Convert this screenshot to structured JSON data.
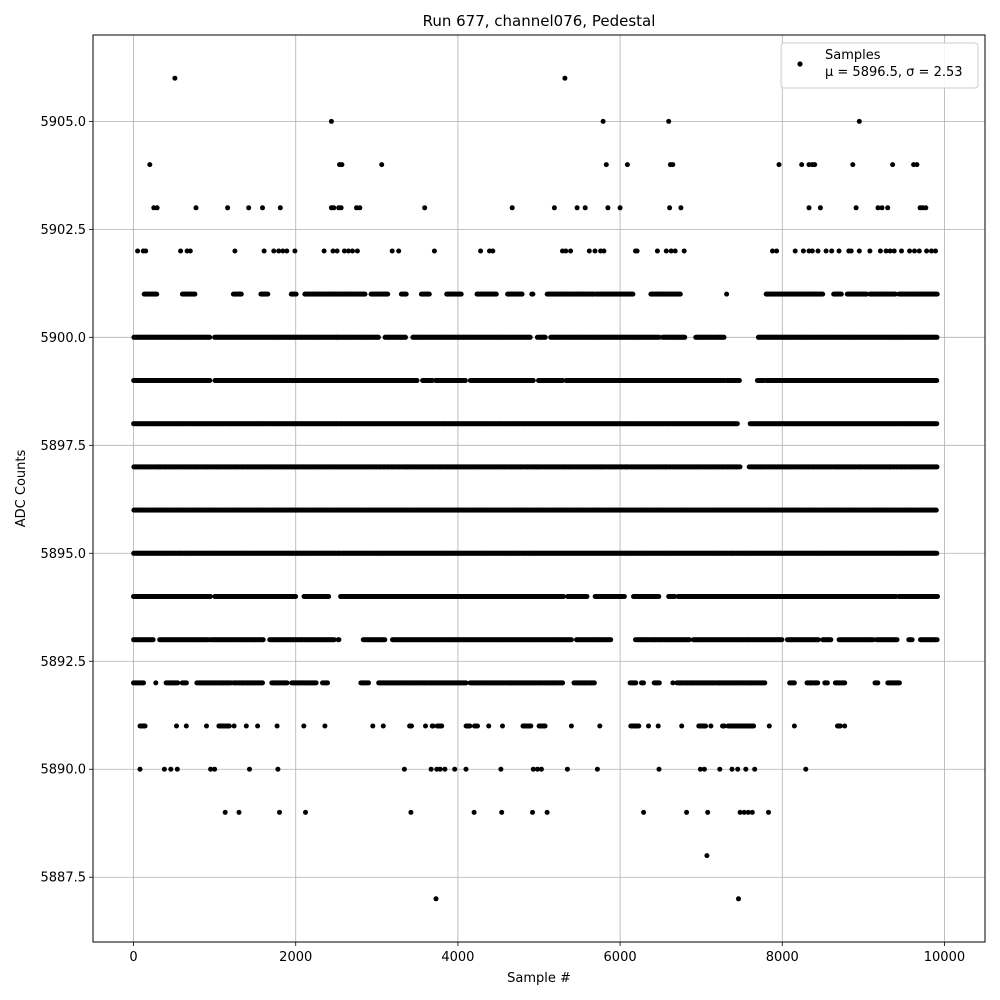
{
  "chart_data": {
    "type": "scatter",
    "title": "Run 677, channel076, Pedestal",
    "xlabel": "Sample #",
    "ylabel": "ADC Counts",
    "xlim": [
      -500,
      10500
    ],
    "ylim": [
      5886,
      5907
    ],
    "x_ticks": [
      0,
      2000,
      4000,
      6000,
      8000,
      10000
    ],
    "x_tick_labels": [
      "0",
      "2000",
      "4000",
      "6000",
      "8000",
      "10000"
    ],
    "y_ticks": [
      5887.5,
      5890.0,
      5892.5,
      5895.0,
      5897.5,
      5900.0,
      5902.5,
      5905.0
    ],
    "y_tick_labels": [
      "5887.5",
      "5890.0",
      "5892.5",
      "5895.0",
      "5897.5",
      "5900.0",
      "5902.5",
      "5905.0"
    ],
    "grid": true,
    "legend_position": "top-right",
    "marker_color": "#000000",
    "series": [
      {
        "name": "Samples",
        "legend_line2": "μ = 5896.5, σ = 2.53",
        "x": [
          510,
          5320,
          2440,
          5790,
          6600,
          8950,
          200,
          2540,
          2570,
          3060,
          5830,
          6090,
          6620,
          6650,
          7960,
          8240,
          8330,
          8370,
          8400,
          8870,
          9360,
          9620,
          9660,
          250,
          290,
          770,
          1160,
          1420,
          1590,
          1810,
          2440,
          2470,
          2530,
          2560,
          2750,
          2790,
          3590,
          4670,
          5190,
          5470,
          5570,
          5850,
          6000,
          6610,
          6750,
          8330,
          8470,
          8910,
          9180,
          9230,
          9300,
          9700,
          9730,
          9770,
          50,
          120,
          150,
          580,
          660,
          700,
          1250,
          1610,
          1730,
          1790,
          1840,
          1890,
          1990,
          2350,
          2460,
          2510,
          2600,
          2650,
          2700,
          2760,
          3190,
          3270,
          3710,
          4280,
          4390,
          4430,
          5290,
          5330,
          5390,
          5620,
          5690,
          5760,
          5800,
          6190,
          6210,
          6460,
          6570,
          6630,
          6680,
          6790,
          7880,
          7930,
          8160,
          8260,
          8330,
          8370,
          8440,
          8540,
          8610,
          8700,
          8820,
          8850,
          8950,
          9080,
          9210,
          9280,
          9330,
          9380,
          9470,
          9570,
          9630,
          9690,
          9780,
          9840,
          9890
        ],
        "y": [
          5906,
          5906,
          5905,
          5905,
          5905,
          5905,
          5904,
          5904,
          5904,
          5904,
          5904,
          5904,
          5904,
          5904,
          5904,
          5904,
          5904,
          5904,
          5904,
          5904,
          5904,
          5904,
          5904,
          5903,
          5903,
          5903,
          5903,
          5903,
          5903,
          5903,
          5903,
          5903,
          5903,
          5903,
          5903,
          5903,
          5903,
          5903,
          5903,
          5903,
          5903,
          5903,
          5903,
          5903,
          5903,
          5903,
          5903,
          5903,
          5903,
          5903,
          5903,
          5903,
          5903,
          5903,
          5902,
          5902,
          5902,
          5902,
          5902,
          5902,
          5902,
          5902,
          5902,
          5902,
          5902,
          5902,
          5902,
          5902,
          5902,
          5902,
          5902,
          5902,
          5902,
          5902,
          5902,
          5902,
          5902,
          5902,
          5902,
          5902,
          5902,
          5902,
          5902,
          5902,
          5902,
          5902,
          5902,
          5902,
          5902,
          5902,
          5902,
          5902,
          5902,
          5902,
          5902,
          5902,
          5902,
          5902,
          5902,
          5902,
          5902,
          5902,
          5902,
          5902,
          5902,
          5902,
          5902,
          5902,
          5902,
          5902,
          5902,
          5902,
          5902,
          5902,
          5902,
          5902,
          5902,
          5902,
          5902
        ]
      }
    ],
    "low_outliers": {
      "x": [
        1130,
        1300,
        1800,
        2120,
        3420,
        4200,
        4540,
        4920,
        5100,
        6290,
        6820,
        7080,
        7480,
        7530,
        7580,
        7630,
        7830,
        3730,
        7460,
        7070,
        80,
        380,
        460,
        540,
        950,
        1000,
        1430,
        1780,
        3340,
        3670,
        3740,
        3780,
        3840,
        3960,
        4100,
        4530,
        4930,
        4980,
        5030,
        5350,
        5720,
        6480,
        6990,
        7040,
        7230,
        7380,
        7450,
        7550,
        7660,
        8290
      ],
      "y": [
        5889,
        5889,
        5889,
        5889,
        5889,
        5889,
        5889,
        5889,
        5889,
        5889,
        5889,
        5889,
        5889,
        5889,
        5889,
        5889,
        5889,
        5887,
        5887,
        5888,
        5890,
        5890,
        5890,
        5890,
        5890,
        5890,
        5890,
        5890,
        5890,
        5890,
        5890,
        5890,
        5890,
        5890,
        5890,
        5890,
        5890,
        5890,
        5890,
        5890,
        5890,
        5890,
        5890,
        5890,
        5890,
        5890,
        5890,
        5890,
        5890,
        5890
      ]
    },
    "dense_rows": [
      {
        "y": 5901,
        "segments": [
          [
            130,
            290
          ],
          [
            600,
            760
          ],
          [
            1230,
            1330
          ],
          [
            1570,
            1660
          ],
          [
            1940,
            2000
          ],
          [
            2110,
            2860
          ],
          [
            2930,
            3140
          ],
          [
            3300,
            3370
          ],
          [
            3550,
            3650
          ],
          [
            3860,
            4050
          ],
          [
            4230,
            4470
          ],
          [
            4610,
            4800
          ],
          [
            4910,
            4930
          ],
          [
            5100,
            5680
          ],
          [
            5700,
            6160
          ],
          [
            6380,
            6750
          ],
          [
            7310,
            7320
          ],
          [
            7800,
            8220
          ],
          [
            8230,
            8500
          ],
          [
            8630,
            8730
          ],
          [
            8800,
            9050
          ],
          [
            9080,
            9400
          ],
          [
            9440,
            9910
          ]
        ]
      },
      {
        "y": 5900,
        "segments": [
          [
            0,
            940
          ],
          [
            1000,
            2500
          ],
          [
            2500,
            3020
          ],
          [
            3100,
            3360
          ],
          [
            3440,
            4900
          ],
          [
            4980,
            5080
          ],
          [
            5140,
            5280
          ],
          [
            5290,
            6480
          ],
          [
            6520,
            6800
          ],
          [
            6930,
            7280
          ],
          [
            7700,
            7990
          ],
          [
            8000,
            9910
          ]
        ]
      },
      {
        "y": 5899,
        "segments": [
          [
            0,
            940
          ],
          [
            1000,
            3500
          ],
          [
            3560,
            3690
          ],
          [
            3720,
            4100
          ],
          [
            4150,
            4940
          ],
          [
            4990,
            5290
          ],
          [
            5330,
            7290
          ],
          [
            7310,
            7470
          ],
          [
            7690,
            7780
          ],
          [
            7800,
            9910
          ]
        ]
      },
      {
        "y": 5898,
        "segments": [
          [
            0,
            7450
          ],
          [
            7600,
            9910
          ]
        ]
      },
      {
        "y": 5897,
        "segments": [
          [
            0,
            7480
          ],
          [
            7590,
            9910
          ]
        ]
      },
      {
        "y": 5896,
        "segments": [
          [
            0,
            9910
          ]
        ]
      },
      {
        "y": 5895,
        "segments": [
          [
            0,
            9910
          ]
        ]
      },
      {
        "y": 5894,
        "segments": [
          [
            0,
            950
          ],
          [
            1000,
            2000
          ],
          [
            2100,
            2400
          ],
          [
            2550,
            5300
          ],
          [
            5350,
            5600
          ],
          [
            5690,
            6050
          ],
          [
            6160,
            6480
          ],
          [
            6600,
            6680
          ],
          [
            6710,
            9400
          ],
          [
            9430,
            9910
          ]
        ]
      },
      {
        "y": 5893,
        "segments": [
          [
            0,
            250
          ],
          [
            320,
            930
          ],
          [
            950,
            1600
          ],
          [
            1680,
            2480
          ],
          [
            2520,
            2540
          ],
          [
            2830,
            3100
          ],
          [
            3190,
            5400
          ],
          [
            5460,
            5890
          ],
          [
            6190,
            6850
          ],
          [
            6900,
            8000
          ],
          [
            8060,
            8450
          ],
          [
            8500,
            8600
          ],
          [
            8700,
            9130
          ],
          [
            9160,
            9420
          ],
          [
            9560,
            9600
          ],
          [
            9700,
            9910
          ]
        ]
      },
      {
        "y": 5892,
        "segments": [
          [
            0,
            130
          ],
          [
            270,
            280
          ],
          [
            400,
            550
          ],
          [
            600,
            650
          ],
          [
            780,
            1200
          ],
          [
            1230,
            1600
          ],
          [
            1700,
            1900
          ],
          [
            1950,
            2250
          ],
          [
            2330,
            2400
          ],
          [
            2800,
            2900
          ],
          [
            3020,
            4100
          ],
          [
            4150,
            5300
          ],
          [
            5430,
            5690
          ],
          [
            6120,
            6200
          ],
          [
            6260,
            6290
          ],
          [
            6420,
            6480
          ],
          [
            6650,
            6660
          ],
          [
            6700,
            7100
          ],
          [
            7110,
            7790
          ],
          [
            8090,
            8150
          ],
          [
            8300,
            8440
          ],
          [
            8520,
            8560
          ],
          [
            8650,
            8770
          ],
          [
            9140,
            9180
          ],
          [
            9300,
            9450
          ]
        ]
      },
      {
        "y": 5891,
        "segments": [
          [
            80,
            140
          ],
          [
            1050,
            1100
          ],
          [
            1120,
            1180
          ],
          [
            3400,
            3430
          ],
          [
            3680,
            3700
          ],
          [
            3740,
            3810
          ],
          [
            4100,
            4150
          ],
          [
            4200,
            4240
          ],
          [
            4800,
            4900
          ],
          [
            5000,
            5080
          ],
          [
            6130,
            6230
          ],
          [
            6970,
            7060
          ],
          [
            7260,
            7290
          ],
          [
            7330,
            7650
          ],
          [
            8680,
            8720
          ]
        ]
      }
    ],
    "scatter_low": {
      "x": [
        530,
        650,
        900,
        1240,
        1390,
        1530,
        1770,
        2100,
        2360,
        2950,
        3080,
        3600,
        3690,
        4130,
        4380,
        4550,
        5400,
        5750,
        6350,
        6470,
        6760,
        7120,
        7840,
        8150,
        8770
      ],
      "y": [
        5891,
        5891,
        5891,
        5891,
        5891,
        5891,
        5891,
        5891,
        5891,
        5891,
        5891,
        5891,
        5891,
        5891,
        5891,
        5891,
        5891,
        5891,
        5891,
        5891,
        5891,
        5891,
        5891,
        5891,
        5891
      ]
    }
  }
}
